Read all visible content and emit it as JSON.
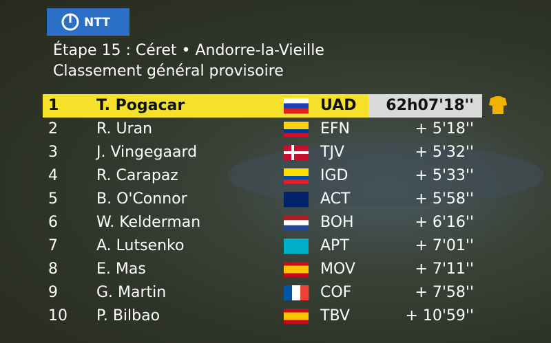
{
  "header": {
    "sponsor": "NTT",
    "title": "Étape 15 : Céret • Andorre-la-Vieille",
    "subtitle": "Classement général provisoire"
  },
  "table": {
    "rows": [
      [
        1,
        "T. Pogacar",
        "UAD",
        "62h07'18''"
      ],
      [
        2,
        "R. Uran",
        "EFN",
        "+ 5'18''"
      ],
      [
        3,
        "J. Vingegaard",
        "TJV",
        "+ 5'32''"
      ],
      [
        4,
        "R. Carapaz",
        "IGD",
        "+ 5'33''"
      ],
      [
        5,
        "B. O'Connor",
        "ACT",
        "+ 5'58''"
      ],
      [
        6,
        "W. Kelderman",
        "BOH",
        "+ 6'16''"
      ],
      [
        7,
        "A. Lutsenko",
        "APT",
        "+ 7'01''"
      ],
      [
        8,
        "E. Mas",
        "MOV",
        "+ 7'11''"
      ],
      [
        9,
        "G. Martin",
        "COF",
        "+ 7'58''"
      ],
      [
        10,
        "P. Bilbao",
        "TBV",
        "+ 10'59''"
      ]
    ]
  }
}
